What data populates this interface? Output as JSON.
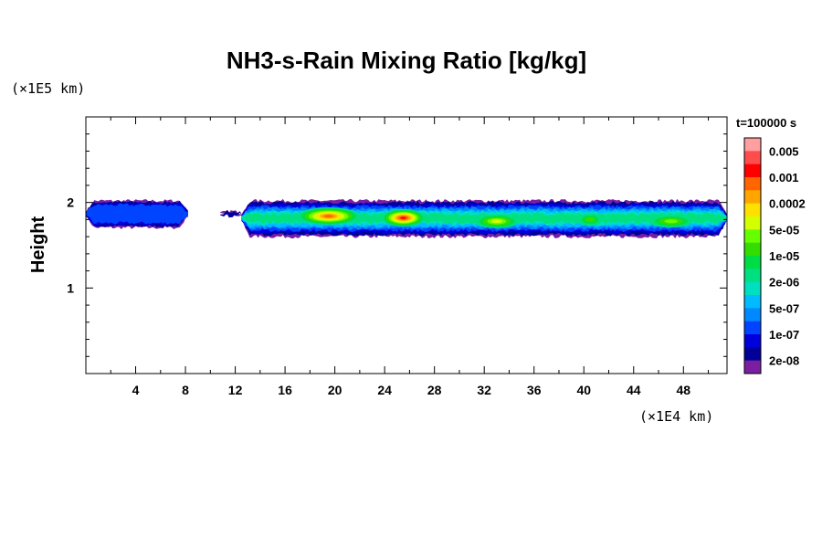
{
  "chart_data": {
    "type": "heatmap",
    "title": "NH3-s-Rain Mixing Ratio [kg/kg]",
    "xlabel": "",
    "ylabel": "Height",
    "x_unit_label": "(×1E4 km)",
    "y_unit_label": "(×1E5 km)",
    "time_label": "t=100000 s",
    "xlim": [
      0,
      51.5
    ],
    "ylim": [
      0,
      3.0
    ],
    "x_ticks": [
      4,
      8,
      12,
      16,
      20,
      24,
      28,
      32,
      36,
      40,
      44,
      48
    ],
    "x_tick_labels": [
      "4",
      "8",
      "12",
      "16",
      "20",
      "24",
      "28",
      "32",
      "36",
      "40",
      "44",
      "48"
    ],
    "y_ticks": [
      1,
      2
    ],
    "y_tick_labels": [
      "1",
      "2"
    ],
    "grid": false,
    "legend_placement": "right",
    "colorbar": {
      "labels": [
        "0.005",
        "0.001",
        "0.0002",
        "5e-05",
        "1e-05",
        "2e-06",
        "5e-07",
        "1e-07",
        "2e-08"
      ],
      "colors": [
        "#ff9f9f",
        "#ff4d4d",
        "#ff0000",
        "#ff6600",
        "#ffa500",
        "#ffe000",
        "#d4ff00",
        "#66ff00",
        "#33dd00",
        "#00dd44",
        "#00e080",
        "#00e0c0",
        "#00bbff",
        "#0088ff",
        "#0044ff",
        "#0000dd",
        "#000099",
        "#7b1fa2"
      ]
    },
    "cloud_segments": [
      {
        "x_start": 0.0,
        "x_end": 8.2,
        "y_bottom": 1.72,
        "y_top": 2.02,
        "peak_level": 3
      },
      {
        "x_start": 10.8,
        "x_end": 12.5,
        "y_bottom": 1.84,
        "y_top": 1.9,
        "peak_level": 1
      },
      {
        "x_start": 12.5,
        "x_end": 51.5,
        "y_bottom": 1.62,
        "y_top": 2.02,
        "peak_level": 14
      }
    ],
    "intense_cores": [
      {
        "x": 19.5,
        "y": 1.84,
        "width": 5.0,
        "height": 0.16,
        "level": 14
      },
      {
        "x": 25.5,
        "y": 1.82,
        "width": 3.5,
        "height": 0.16,
        "level": 15
      },
      {
        "x": 33.0,
        "y": 1.78,
        "width": 3.5,
        "height": 0.12,
        "level": 11
      },
      {
        "x": 40.5,
        "y": 1.8,
        "width": 2.0,
        "height": 0.1,
        "level": 9
      },
      {
        "x": 47.0,
        "y": 1.78,
        "width": 3.5,
        "height": 0.1,
        "level": 10
      }
    ]
  }
}
